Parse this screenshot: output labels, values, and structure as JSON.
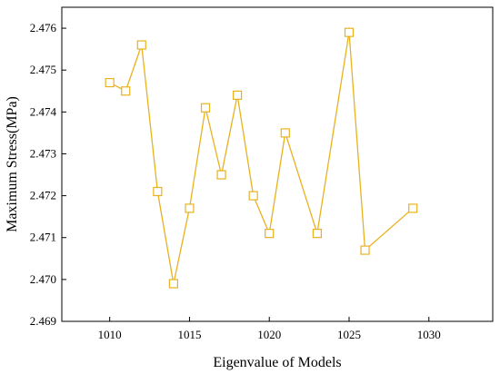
{
  "chart_data": {
    "type": "line",
    "title": "",
    "xlabel": "Eigenvalue of Models",
    "ylabel": "Maximum Stress(MPa)",
    "xlim": [
      1007,
      1034
    ],
    "ylim": [
      2.469,
      2.4765
    ],
    "x_ticks": [
      1010,
      1015,
      1020,
      1025,
      1030
    ],
    "x_tick_labels": [
      "1010",
      "1015",
      "1020",
      "1025",
      "1030"
    ],
    "y_ticks": [
      2.469,
      2.47,
      2.471,
      2.472,
      2.473,
      2.474,
      2.475,
      2.476
    ],
    "y_tick_labels": [
      "2.469",
      "2.470",
      "2.471",
      "2.472",
      "2.473",
      "2.474",
      "2.475",
      "2.476"
    ],
    "grid": false,
    "legend": "none",
    "colors": {
      "series": "#e8b21e",
      "axis": "#000000",
      "marker_fill": "#ffffff"
    },
    "marker": "hollow-square",
    "series": [
      {
        "x": [
          1010,
          1011,
          1012,
          1013,
          1014,
          1015,
          1016,
          1017,
          1018,
          1019,
          1020,
          1021,
          1023,
          1025,
          1026,
          1029
        ],
        "values": [
          2.4747,
          2.4745,
          2.4756,
          2.4721,
          2.4699,
          2.4717,
          2.4741,
          2.4725,
          2.4744,
          2.472,
          2.4711,
          2.4735,
          2.4711,
          2.4759,
          2.4707,
          2.4717
        ]
      }
    ]
  }
}
